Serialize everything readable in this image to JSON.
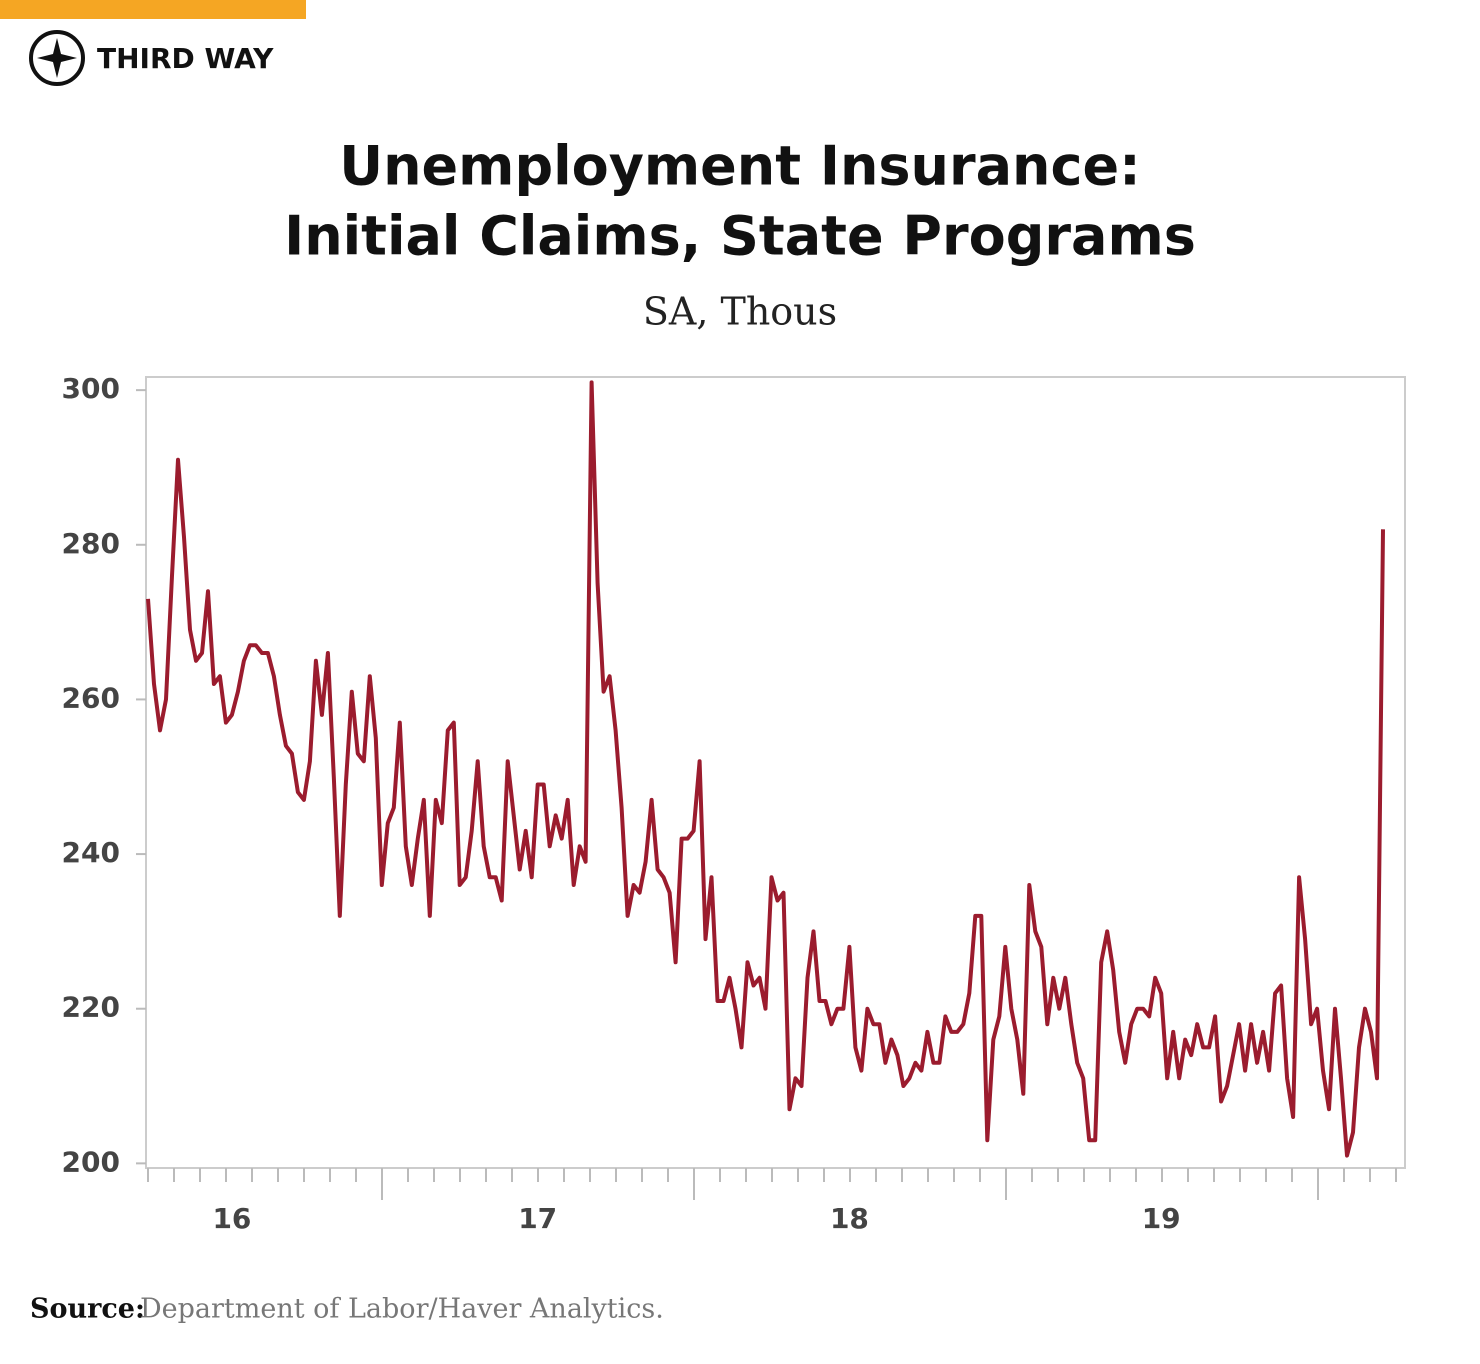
{
  "brand": "THIRD WAY",
  "source_label": "Source:",
  "source": "Department of Labor/Haver Analytics.",
  "chart_data": {
    "type": "line",
    "title": [
      "Unemployment Insurance:",
      "Initial Claims, State Programs"
    ],
    "subtitle": "SA, Thous",
    "categories": [
      null,
      null,
      null,
      null,
      null,
      null,
      null,
      null,
      null,
      null,
      null,
      null,
      null,
      null,
      "16",
      null,
      null,
      null,
      null,
      null,
      null,
      null,
      null,
      null,
      null,
      null,
      null,
      null,
      null,
      null,
      null,
      null,
      null,
      null,
      null,
      null,
      null,
      null,
      null,
      null,
      null,
      null,
      null,
      null,
      null,
      null,
      null,
      null,
      null,
      null,
      null,
      null,
      null,
      null,
      null,
      null,
      null,
      null,
      null,
      null,
      null,
      null,
      null,
      null,
      null,
      "17",
      null,
      null,
      null,
      null,
      null,
      null,
      null,
      null,
      null,
      null,
      null,
      null,
      null,
      null,
      null,
      null,
      null,
      null,
      null,
      null,
      null,
      null,
      null,
      null,
      null,
      null,
      null,
      null,
      null,
      null,
      null,
      null,
      null,
      null,
      null,
      null,
      null,
      null,
      null,
      null,
      null,
      null,
      null,
      null,
      null,
      null,
      null,
      null,
      null,
      null,
      null,
      "18",
      null,
      null,
      null,
      null,
      null,
      null,
      null,
      null,
      null,
      null,
      null,
      null,
      null,
      null,
      null,
      null,
      null,
      null,
      null,
      null,
      null,
      null,
      null,
      null,
      null,
      null,
      null,
      null,
      null,
      null,
      null,
      null,
      null,
      null,
      null,
      null,
      null,
      null,
      null,
      null,
      null,
      null,
      null,
      null,
      null,
      null,
      null,
      null,
      null,
      null,
      null,
      "19",
      null,
      null,
      null,
      null,
      null,
      null,
      null,
      null,
      null,
      null,
      null,
      null,
      null,
      null,
      null,
      null,
      null,
      null,
      null,
      null,
      null,
      null,
      null,
      null,
      null,
      null,
      null,
      null,
      null,
      null,
      null,
      null,
      null,
      null,
      null,
      null,
      null
    ],
    "series": [
      {
        "color": "#9b1c2e",
        "values": [
          273,
          262,
          256,
          260,
          276,
          291,
          281,
          269,
          265,
          266,
          274,
          262,
          263,
          257,
          258,
          261,
          265,
          267,
          267,
          266,
          266,
          263,
          258,
          254,
          253,
          248,
          247,
          252,
          265,
          258,
          266,
          250,
          232,
          249,
          261,
          253,
          252,
          263,
          255,
          236,
          244,
          246,
          257,
          241,
          236,
          242,
          247,
          232,
          247,
          244,
          256,
          257,
          236,
          237,
          243,
          252,
          241,
          237,
          237,
          234,
          252,
          245,
          238,
          243,
          237,
          249,
          249,
          241,
          245,
          242,
          247,
          236,
          241,
          239,
          301,
          275,
          261,
          263,
          256,
          246,
          232,
          236,
          235,
          239,
          247,
          238,
          237,
          235,
          226,
          242,
          242,
          243,
          252,
          229,
          237,
          221,
          221,
          224,
          220,
          215,
          226,
          223,
          224,
          220,
          237,
          234,
          235,
          207,
          211,
          210,
          224,
          230,
          221,
          221,
          218,
          220,
          220,
          228,
          215,
          212,
          220,
          218,
          218,
          213,
          216,
          214,
          210,
          211,
          213,
          212,
          217,
          213,
          213,
          219,
          217,
          217,
          218,
          222,
          232,
          232,
          203,
          216,
          219,
          228,
          220,
          216,
          209,
          236,
          230,
          228,
          218,
          224,
          220,
          224,
          218,
          213,
          211,
          203,
          203,
          226,
          230,
          225,
          217,
          213,
          218,
          220,
          220,
          219,
          224,
          222,
          211,
          217,
          211,
          216,
          214,
          218,
          215,
          215,
          219,
          208,
          210,
          214,
          218,
          212,
          218,
          213,
          217,
          212,
          222,
          223,
          211,
          206,
          237,
          229,
          218,
          220,
          212,
          207,
          220,
          211,
          201,
          204,
          215,
          220,
          217,
          211,
          282
        ]
      }
    ],
    "ylim": [
      199.4,
      301.7
    ],
    "yticks": [
      200,
      220,
      240,
      260,
      280,
      300
    ],
    "grid": false
  }
}
